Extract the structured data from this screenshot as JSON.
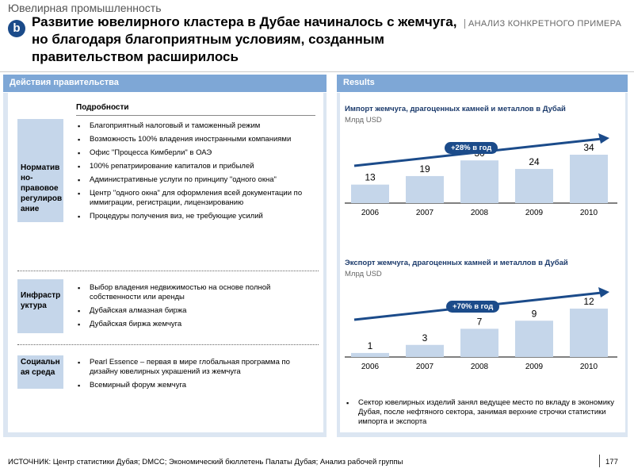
{
  "header": {
    "industry": "Ювелирная промышленность",
    "badge": "b",
    "title": "Развитие ювелирного кластера в Дубае начиналось с жемчуга, но благодаря благоприятным условиям, созданным правительством расширилось",
    "case_label": "АНАЛИЗ КОНКРЕТНОГО ПРИМЕРА"
  },
  "left_panel": {
    "title": "Действия правительства",
    "details_header": "Подробности",
    "sections": [
      {
        "category": "Норматив но-правовое регулиров ание",
        "bullets": [
          "Благоприятный налоговый и таможенный режим",
          "Возможность 100% владения иностранными компаниями",
          "Офис \"Процесса Кимберли\" в ОАЭ",
          "100% репатриирование капиталов и прибылей",
          "Административные услуги по принципу \"одного окна\"",
          " Центр \"одного окна\" для оформления всей документации по иммиграции, регистрации, лицензированию",
          " Процедуры получения виз, не требующие усилий"
        ]
      },
      {
        "category": "Инфрастр уктура",
        "bullets": [
          "Выбор владения недвижимостью на основе полной собственности или аренды",
          "Дубайская алмазная биржа",
          "Дубайская биржа жемчуга"
        ]
      },
      {
        "category": "Социальн ая среда",
        "bullets": [
          "Pearl Essence – первая в мире глобальная программа по дизайну ювелирных украшений из жемчуга",
          "Всемирный форум жемчуга"
        ]
      }
    ]
  },
  "right_panel": {
    "title": "Results",
    "note": "Сектор ювелирных изделий занял ведущее место по вкладу в экономику Дубая, после нефтяного сектора, занимая верхние строчки статистики импорта и экспорта"
  },
  "chart_data": [
    {
      "type": "bar",
      "title": "Импорт жемчуга, драгоценных камней и металлов в Дубай",
      "ylabel": "Млрд USD",
      "categories": [
        "2006",
        "2007",
        "2008",
        "2009",
        "2010"
      ],
      "values": [
        13,
        19,
        30,
        24,
        34
      ],
      "annotation": "+28% в год",
      "bar_color": "#c5d6ea",
      "arrow_color": "#1b4b8a"
    },
    {
      "type": "bar",
      "title": "Экспорт жемчуга, драгоценных камней и металлов в Дубай",
      "ylabel": "Млрд USD",
      "categories": [
        "2006",
        "2007",
        "2008",
        "2009",
        "2010"
      ],
      "values": [
        1,
        3,
        7,
        9,
        12
      ],
      "annotation": "+70% в год",
      "bar_color": "#c5d6ea",
      "arrow_color": "#1b4b8a"
    }
  ],
  "footer": {
    "source": "ИСТОЧНИК: Центр статистики Дубая; DMCC; Экономический бюллетень Палаты Дубая; Анализ рабочей группы",
    "page_number": "177"
  }
}
